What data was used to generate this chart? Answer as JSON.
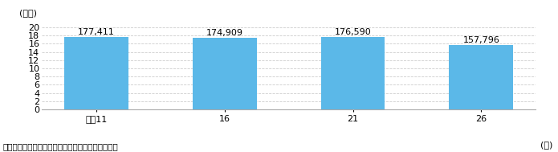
{
  "categories": [
    "平成11",
    "16",
    "21",
    "26"
  ],
  "values": [
    17.7411,
    17.4909,
    17.659,
    15.7796
  ],
  "labels": [
    "177,411",
    "174,909",
    "176,590",
    "157,796"
  ],
  "bar_color": "#5bb8e8",
  "ylim": [
    0,
    20
  ],
  "yticks": [
    0,
    2,
    4,
    6,
    8,
    10,
    12,
    14,
    16,
    18,
    20
  ],
  "ylabel": "(万円)",
  "xlabel_right": "(年)",
  "note": "注：数値は、総務省「全国消費実態調査」による。",
  "background_color": "#ffffff",
  "grid_color": "#cccccc",
  "label_fontsize": 8,
  "tick_fontsize": 8,
  "note_fontsize": 7.5,
  "bar_width": 0.5
}
